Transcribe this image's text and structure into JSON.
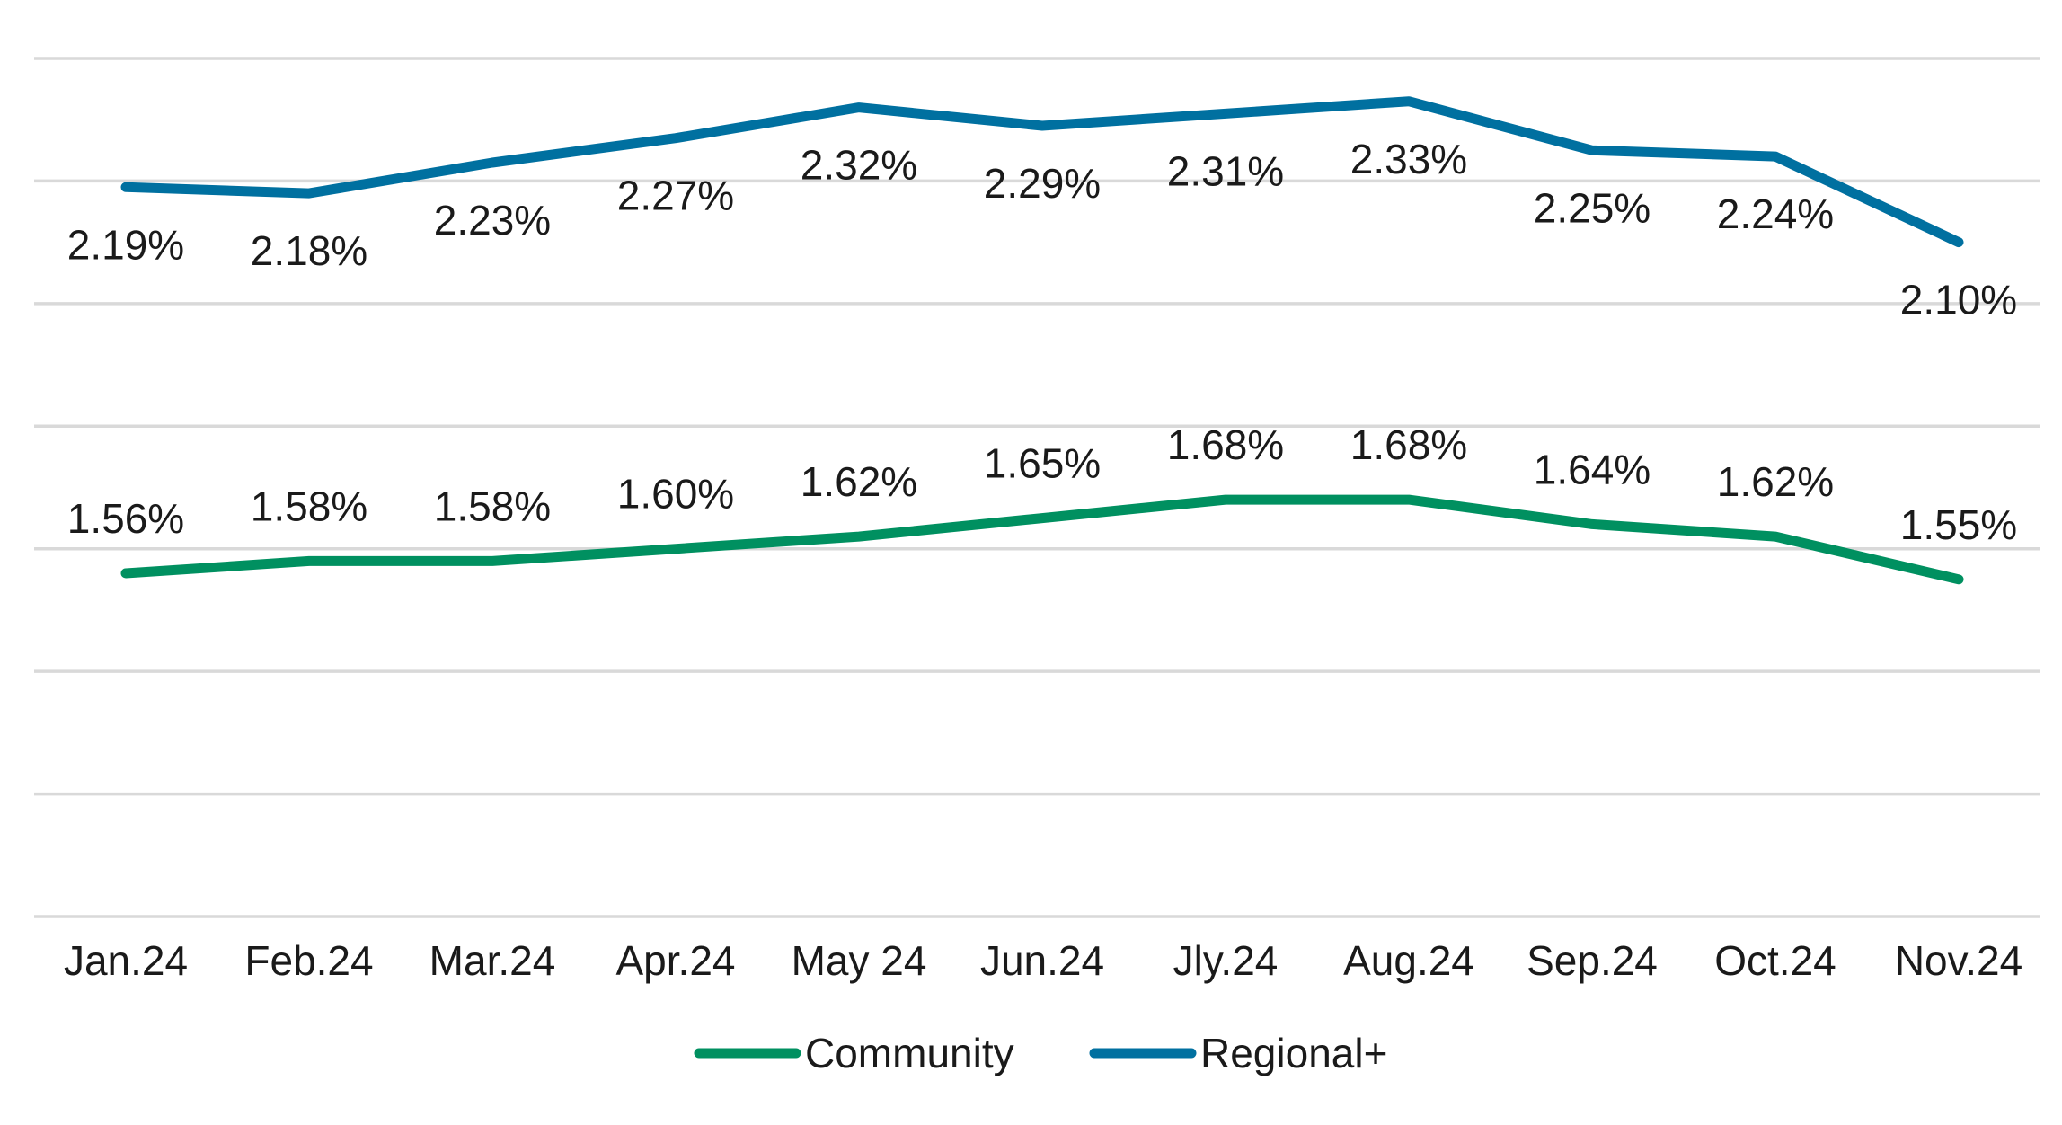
{
  "chart_data": {
    "type": "line",
    "categories": [
      "Jan.24",
      "Feb.24",
      "Mar.24",
      "Apr.24",
      "May 24",
      "Jun.24",
      "Jly.24",
      "Aug.24",
      "Sep.24",
      "Oct.24",
      "Nov.24"
    ],
    "series": [
      {
        "name": "Community",
        "values": [
          1.56,
          1.58,
          1.58,
          1.6,
          1.62,
          1.65,
          1.68,
          1.68,
          1.64,
          1.62,
          1.55
        ],
        "labels": [
          "1.56%",
          "1.58%",
          "1.58%",
          "1.60%",
          "1.62%",
          "1.65%",
          "1.68%",
          "1.68%",
          "1.64%",
          "1.62%",
          "1.55%"
        ],
        "color": "#009060"
      },
      {
        "name": "Regional+",
        "values": [
          2.19,
          2.18,
          2.23,
          2.27,
          2.32,
          2.29,
          2.31,
          2.33,
          2.25,
          2.24,
          2.1
        ],
        "labels": [
          "2.19%",
          "2.18%",
          "2.23%",
          "2.27%",
          "2.32%",
          "2.29%",
          "2.31%",
          "2.33%",
          "2.25%",
          "2.24%",
          "2.10%"
        ],
        "color": "#0070A0"
      }
    ],
    "ylim": [
      1.0,
      2.4
    ],
    "y_gridlines": [
      1.0,
      1.2,
      1.4,
      1.6,
      1.8,
      2.0,
      2.2,
      2.4
    ],
    "y_tick_labels_visible": false,
    "grid": true,
    "legend": "bottom-center",
    "title": "",
    "xlabel": "",
    "ylabel": ""
  }
}
